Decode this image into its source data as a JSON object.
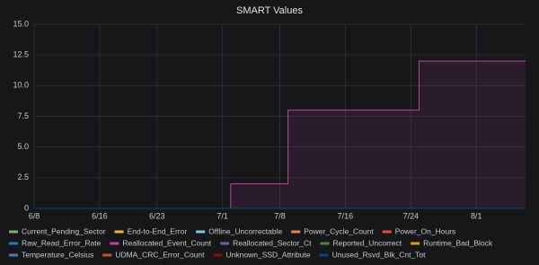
{
  "chart_data": {
    "type": "line",
    "title": "SMART Values",
    "x": [
      "6/8",
      "7/2",
      "7/9",
      "7/25",
      "8/7"
    ],
    "xlim": [
      "6/8",
      "8/7"
    ],
    "xticks": [
      "6/8",
      "6/16",
      "6/23",
      "7/1",
      "7/8",
      "7/16",
      "7/24",
      "8/1"
    ],
    "ylim": [
      0,
      15
    ],
    "yticks": [
      0,
      2.5,
      {
        "value": 5,
        "label": "5.0"
      },
      7.5,
      {
        "value": 10,
        "label": "10.0"
      },
      12.5,
      {
        "value": 15,
        "label": "15.0"
      }
    ],
    "grid": true,
    "step": true,
    "legend": "bottom",
    "series": [
      {
        "name": "Current_Pending_Sector",
        "color": "#7EB26D",
        "values": [
          0,
          0,
          0,
          0,
          0
        ]
      },
      {
        "name": "End-to-End_Error",
        "color": "#EAB839",
        "values": [
          0,
          0,
          0,
          0,
          0
        ]
      },
      {
        "name": "Offline_Uncorrectable",
        "color": "#6ED0E0",
        "values": [
          0,
          0,
          0,
          0,
          0
        ]
      },
      {
        "name": "Power_Cycle_Count",
        "color": "#EF843C",
        "values": [
          0,
          0,
          0,
          0,
          0
        ]
      },
      {
        "name": "Power_On_Hours",
        "color": "#E24D42",
        "values": [
          0,
          0,
          0,
          0,
          0
        ]
      },
      {
        "name": "Raw_Read_Error_Rate",
        "color": "#1F78C1",
        "values": [
          0,
          0,
          0,
          0,
          0
        ]
      },
      {
        "name": "Reallocated_Event_Count",
        "color": "#BA43A9",
        "values": [
          0,
          2,
          8,
          12,
          12
        ],
        "fill": true
      },
      {
        "name": "Reallocated_Sector_Ct",
        "color": "#705DA0",
        "values": [
          0,
          0,
          0,
          0,
          0
        ]
      },
      {
        "name": "Reported_Uncorrect",
        "color": "#508642",
        "values": [
          0,
          0,
          0,
          0,
          0
        ]
      },
      {
        "name": "Runtime_Bad_Block",
        "color": "#CCA300",
        "values": [
          0,
          0,
          0,
          0,
          0
        ]
      },
      {
        "name": "Temperature_Celsius",
        "color": "#447EBC",
        "values": [
          0,
          0,
          0,
          0,
          0
        ]
      },
      {
        "name": "UDMA_CRC_Error_Count",
        "color": "#C15C17",
        "values": [
          0,
          0,
          0,
          0,
          0
        ]
      },
      {
        "name": "Unknown_SSD_Attribute",
        "color": "#890F02",
        "values": [
          0,
          0,
          0,
          0,
          0
        ]
      },
      {
        "name": "Unused_Rsvd_Blk_Cnt_Tot",
        "color": "#0A437C",
        "values": [
          0,
          0,
          0,
          0,
          0
        ]
      }
    ]
  }
}
